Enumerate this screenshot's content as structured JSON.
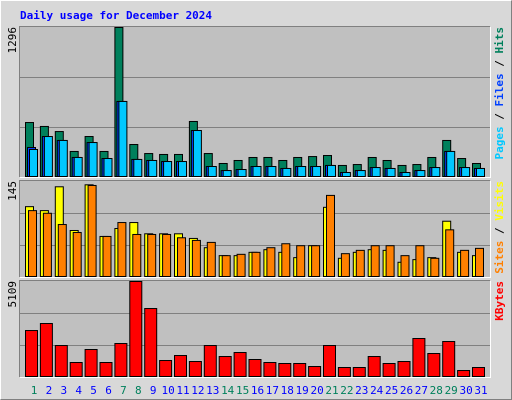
{
  "chart_data": [
    {
      "type": "bar",
      "title": "Daily usage for December 2024",
      "ylim": [
        0,
        1296
      ],
      "yticks": [
        1296
      ],
      "legend_separator": " / ",
      "series": [
        {
          "name": "Hits",
          "color": "#00805c",
          "values": [
            475,
            441,
            397,
            225,
            354,
            225,
            1296,
            285,
            207,
            199,
            199,
            484,
            207,
            121,
            147,
            173,
            173,
            147,
            173,
            181,
            190,
            104,
            112,
            173,
            147,
            104,
            112,
            173,
            320,
            164,
            121
          ]
        },
        {
          "name": "Files",
          "color": "#0040ff",
          "values": [
            259,
            354,
            320,
            173,
            302,
            164,
            657,
            156,
            147,
            138,
            138,
            406,
            95,
            60,
            69,
            95,
            95,
            78,
            95,
            95,
            104,
            43,
            60,
            86,
            78,
            43,
            60,
            86,
            225,
            86,
            78
          ]
        },
        {
          "name": "Pages",
          "color": "#00c8ff",
          "values": [
            242,
            354,
            320,
            173,
            302,
            164,
            657,
            156,
            147,
            138,
            138,
            406,
            95,
            60,
            69,
            95,
            95,
            78,
            95,
            95,
            104,
            43,
            60,
            86,
            78,
            43,
            60,
            86,
            225,
            86,
            78
          ]
        }
      ]
    },
    {
      "type": "bar",
      "ylim": [
        0,
        145
      ],
      "yticks": [
        145
      ],
      "legend_separator": " / ",
      "series": [
        {
          "name": "Visits",
          "color": "#ffff00",
          "values": [
            107,
            101,
            137,
            71,
            140,
            62,
            74,
            83,
            66,
            66,
            66,
            59,
            45,
            33,
            33,
            38,
            42,
            38,
            30,
            48,
            106,
            29,
            38,
            42,
            41,
            23,
            27,
            30,
            85,
            38,
            33
          ]
        },
        {
          "name": "Sites",
          "color": "#ff8000",
          "values": [
            101,
            97,
            80,
            68,
            139,
            62,
            83,
            65,
            65,
            65,
            60,
            56,
            53,
            33,
            35,
            38,
            45,
            51,
            48,
            48,
            124,
            36,
            41,
            48,
            48,
            33,
            48,
            29,
            72,
            41,
            44
          ]
        }
      ]
    },
    {
      "type": "bar",
      "ylim": [
        0,
        5109
      ],
      "yticks": [
        5109
      ],
      "categories": [
        "1",
        "2",
        "3",
        "4",
        "5",
        "6",
        "7",
        "8",
        "9",
        "10",
        "11",
        "12",
        "13",
        "14",
        "15",
        "16",
        "17",
        "18",
        "19",
        "20",
        "21",
        "22",
        "23",
        "24",
        "25",
        "26",
        "27",
        "28",
        "29",
        "30",
        "31"
      ],
      "category_colors": [
        "#00805c",
        "#0000ff",
        "#0000ff",
        "#0000ff",
        "#0000ff",
        "#0000ff",
        "#00805c",
        "#00805c",
        "#0000ff",
        "#0000ff",
        "#0000ff",
        "#0000ff",
        "#0000ff",
        "#00805c",
        "#00805c",
        "#0000ff",
        "#0000ff",
        "#0000ff",
        "#0000ff",
        "#0000ff",
        "#00805c",
        "#00805c",
        "#0000ff",
        "#0000ff",
        "#0000ff",
        "#0000ff",
        "#0000ff",
        "#00805c",
        "#00805c",
        "#0000ff",
        "#0000ff"
      ],
      "series": [
        {
          "name": "KBytes",
          "color": "#ff0000",
          "values": [
            2500,
            2873,
            1702,
            798,
            1490,
            798,
            1809,
            5109,
            3671,
            904,
            1170,
            851,
            1702,
            1117,
            1330,
            958,
            798,
            745,
            745,
            585,
            1702,
            532,
            532,
            1117,
            745,
            851,
            2075,
            1277,
            1915,
            372,
            532
          ]
        }
      ]
    }
  ]
}
